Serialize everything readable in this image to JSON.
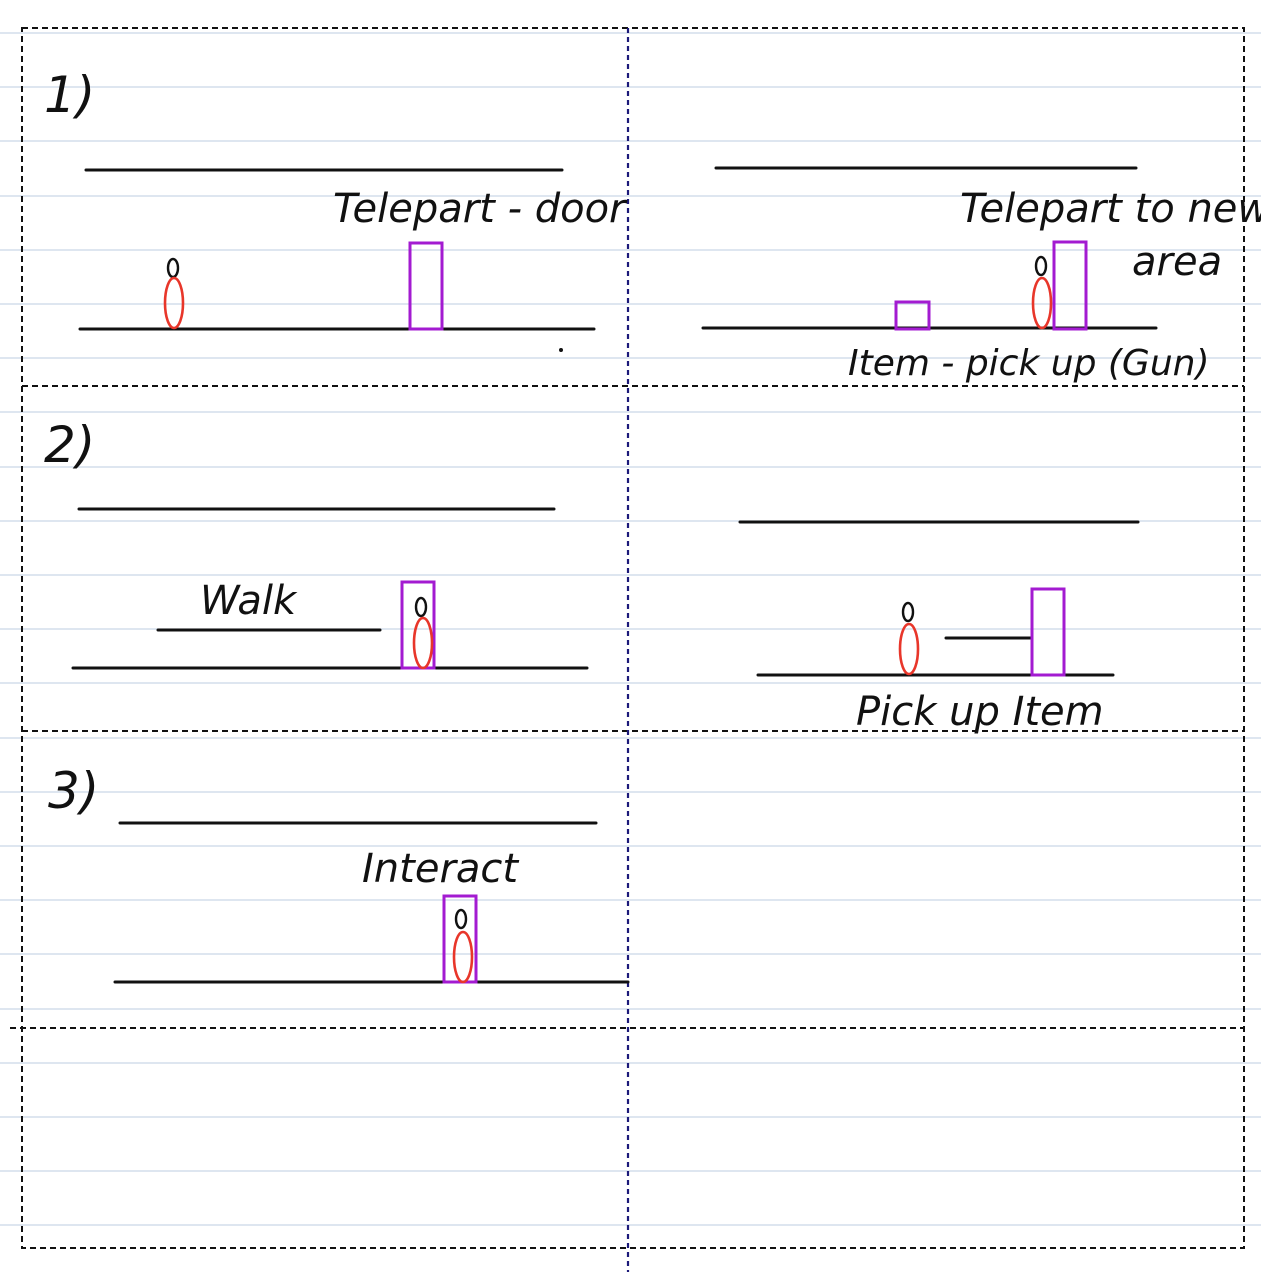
{
  "colors": {
    "paper": "#ffffff",
    "ruled_line": "#c9d6e6",
    "ink": "#111111",
    "divider": "#1c1a7a",
    "door_outline": "#a31bd1",
    "character_body": "#e8362a"
  },
  "panels": [
    {
      "number": "1)",
      "labels": [
        "Telepart - door"
      ]
    },
    {
      "number": "",
      "labels": [
        "Telepart to new",
        "area",
        "Item - pick up (Gun)"
      ]
    },
    {
      "number": "2)",
      "labels": [
        "Walk"
      ]
    },
    {
      "number": "",
      "labels": [
        "Pick up Item"
      ]
    },
    {
      "number": "3)",
      "labels": [
        "Interact"
      ]
    }
  ]
}
